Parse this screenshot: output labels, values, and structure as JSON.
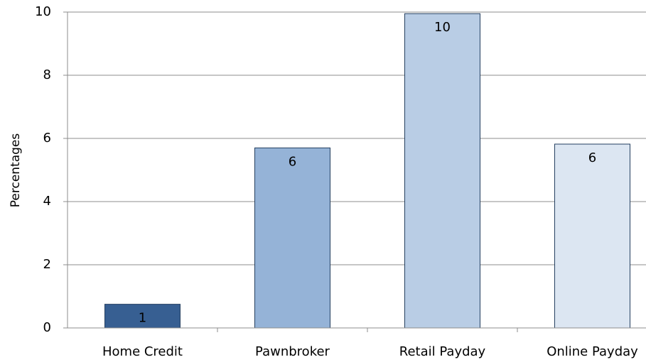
{
  "chart_data": {
    "type": "bar",
    "y_axis_label": "Percentages",
    "categories": [
      "Home Credit",
      "Pawnbroker",
      "Retail Payday",
      "Online Payday"
    ],
    "values": [
      0.75,
      5.7,
      9.95,
      5.82
    ],
    "value_labels": [
      "1",
      "6",
      "10",
      "6"
    ],
    "colors": [
      "#375f92",
      "#95b3d7",
      "#b9cde5",
      "#dce6f2"
    ],
    "ylim": [
      0,
      10
    ],
    "yticks": [
      0,
      2,
      4,
      6,
      8,
      10
    ],
    "grid": true
  }
}
